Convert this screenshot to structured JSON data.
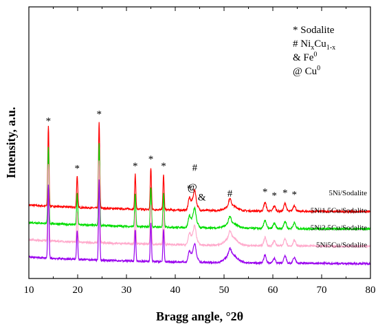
{
  "chart_data": {
    "type": "line",
    "xlabel": "Bragg angle, °2θ",
    "ylabel": "Intensity, a.u.",
    "xlim": [
      10,
      80
    ],
    "xticks": [
      10,
      20,
      30,
      40,
      50,
      60,
      70,
      80
    ],
    "grid": false,
    "legend": {
      "placement": "top-right",
      "entries": [
        {
          "symbol": "*",
          "label": "Sodalite"
        },
        {
          "symbol": "#",
          "label": "Ni",
          "sub1": "x",
          "mid": "Cu",
          "sub2": "1-x"
        },
        {
          "symbol": "&",
          "label": "Fe",
          "sup": "0"
        },
        {
          "symbol": "@",
          "label": "Cu",
          "sup": "0"
        }
      ]
    },
    "series": [
      {
        "name": "5Ni/Sodalite",
        "color": "#ff0000",
        "offset": 60
      },
      {
        "name": "5Ni1.5Cu/Sodalite",
        "color": "#00dd00",
        "offset": 40
      },
      {
        "name": "5Ni2.5Cu/Sodalite",
        "color": "#ffaacc",
        "offset": 20
      },
      {
        "name": "5Ni5Cu/Sodalite",
        "color": "#9900ee",
        "offset": 0
      }
    ],
    "peaks": [
      {
        "x": 14.0,
        "h": 92,
        "label": "*"
      },
      {
        "x": 19.9,
        "h": 37,
        "label": "*"
      },
      {
        "x": 24.4,
        "h": 100,
        "label": "*"
      },
      {
        "x": 31.8,
        "h": 40,
        "label": "*"
      },
      {
        "x": 35.0,
        "h": 48,
        "label": "*"
      },
      {
        "x": 37.6,
        "h": 40,
        "label": "*"
      },
      {
        "x": 42.9,
        "h": 14,
        "label": "*"
      },
      {
        "x": 43.5,
        "h": 9,
        "label": "@"
      },
      {
        "x": 44.0,
        "h": 22,
        "label": "#"
      },
      {
        "x": 44.6,
        "h": 4,
        "label": "&"
      },
      {
        "x": 51.2,
        "h": 8,
        "label": "#"
      },
      {
        "x": 58.4,
        "h": 10,
        "label": "*"
      },
      {
        "x": 60.3,
        "h": 6,
        "label": "*"
      },
      {
        "x": 62.5,
        "h": 9,
        "label": "*"
      },
      {
        "x": 64.4,
        "h": 7,
        "label": "*"
      }
    ]
  }
}
